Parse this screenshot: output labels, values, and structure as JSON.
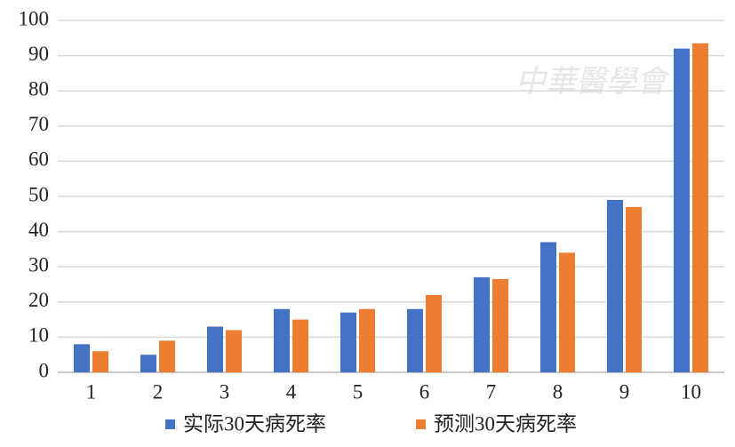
{
  "chart_data": {
    "type": "bar",
    "watermark": "中華醫學會",
    "categories": [
      "1",
      "2",
      "3",
      "4",
      "5",
      "6",
      "7",
      "8",
      "9",
      "10"
    ],
    "series": [
      {
        "name": "实际30天病死率",
        "color": "#4472c4",
        "values": [
          8,
          5,
          13,
          18,
          17,
          18,
          27,
          37,
          49,
          92
        ]
      },
      {
        "name": "预测30天病死率",
        "color": "#ed7d31",
        "values": [
          6,
          9,
          12,
          15,
          18,
          22,
          26.5,
          34,
          47,
          93.5
        ]
      }
    ],
    "ylim": [
      0,
      100
    ],
    "yticks": [
      0,
      10,
      20,
      30,
      40,
      50,
      60,
      70,
      80,
      90,
      100
    ],
    "grid": true,
    "legend": "bottom"
  }
}
